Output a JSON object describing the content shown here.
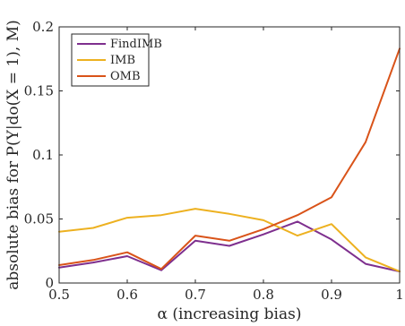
{
  "chart_data": {
    "type": "line",
    "title": "",
    "xlabel": "α (increasing bias)",
    "ylabel": "absolute bias for P(Y|do(X = 1), M)",
    "xlim": [
      0.5,
      1.0
    ],
    "ylim": [
      0,
      0.2
    ],
    "xticks": [
      0.5,
      0.6,
      0.7,
      0.8,
      0.9,
      1.0
    ],
    "xtick_labels": [
      "0.5",
      "0.6",
      "0.7",
      "0.8",
      "0.9",
      "1"
    ],
    "yticks": [
      0,
      0.05,
      0.1,
      0.15,
      0.2
    ],
    "ytick_labels": [
      "0",
      "0.05",
      "0.1",
      "0.15",
      "0.2"
    ],
    "grid": false,
    "legend_position": "top-left",
    "x": [
      0.5,
      0.55,
      0.6,
      0.65,
      0.7,
      0.75,
      0.8,
      0.85,
      0.9,
      0.95,
      1.0
    ],
    "series": [
      {
        "name": "FindIMB",
        "color": "#7e2f8e",
        "values": [
          0.012,
          0.016,
          0.021,
          0.01,
          0.033,
          0.029,
          0.038,
          0.048,
          0.034,
          0.015,
          0.009
        ]
      },
      {
        "name": "IMB",
        "color": "#edb120",
        "values": [
          0.04,
          0.043,
          0.051,
          0.053,
          0.058,
          0.054,
          0.049,
          0.037,
          0.046,
          0.02,
          0.009
        ]
      },
      {
        "name": "OMB",
        "color": "#d95319",
        "values": [
          0.014,
          0.018,
          0.024,
          0.011,
          0.037,
          0.033,
          0.042,
          0.053,
          0.067,
          0.11,
          0.183
        ]
      }
    ]
  }
}
